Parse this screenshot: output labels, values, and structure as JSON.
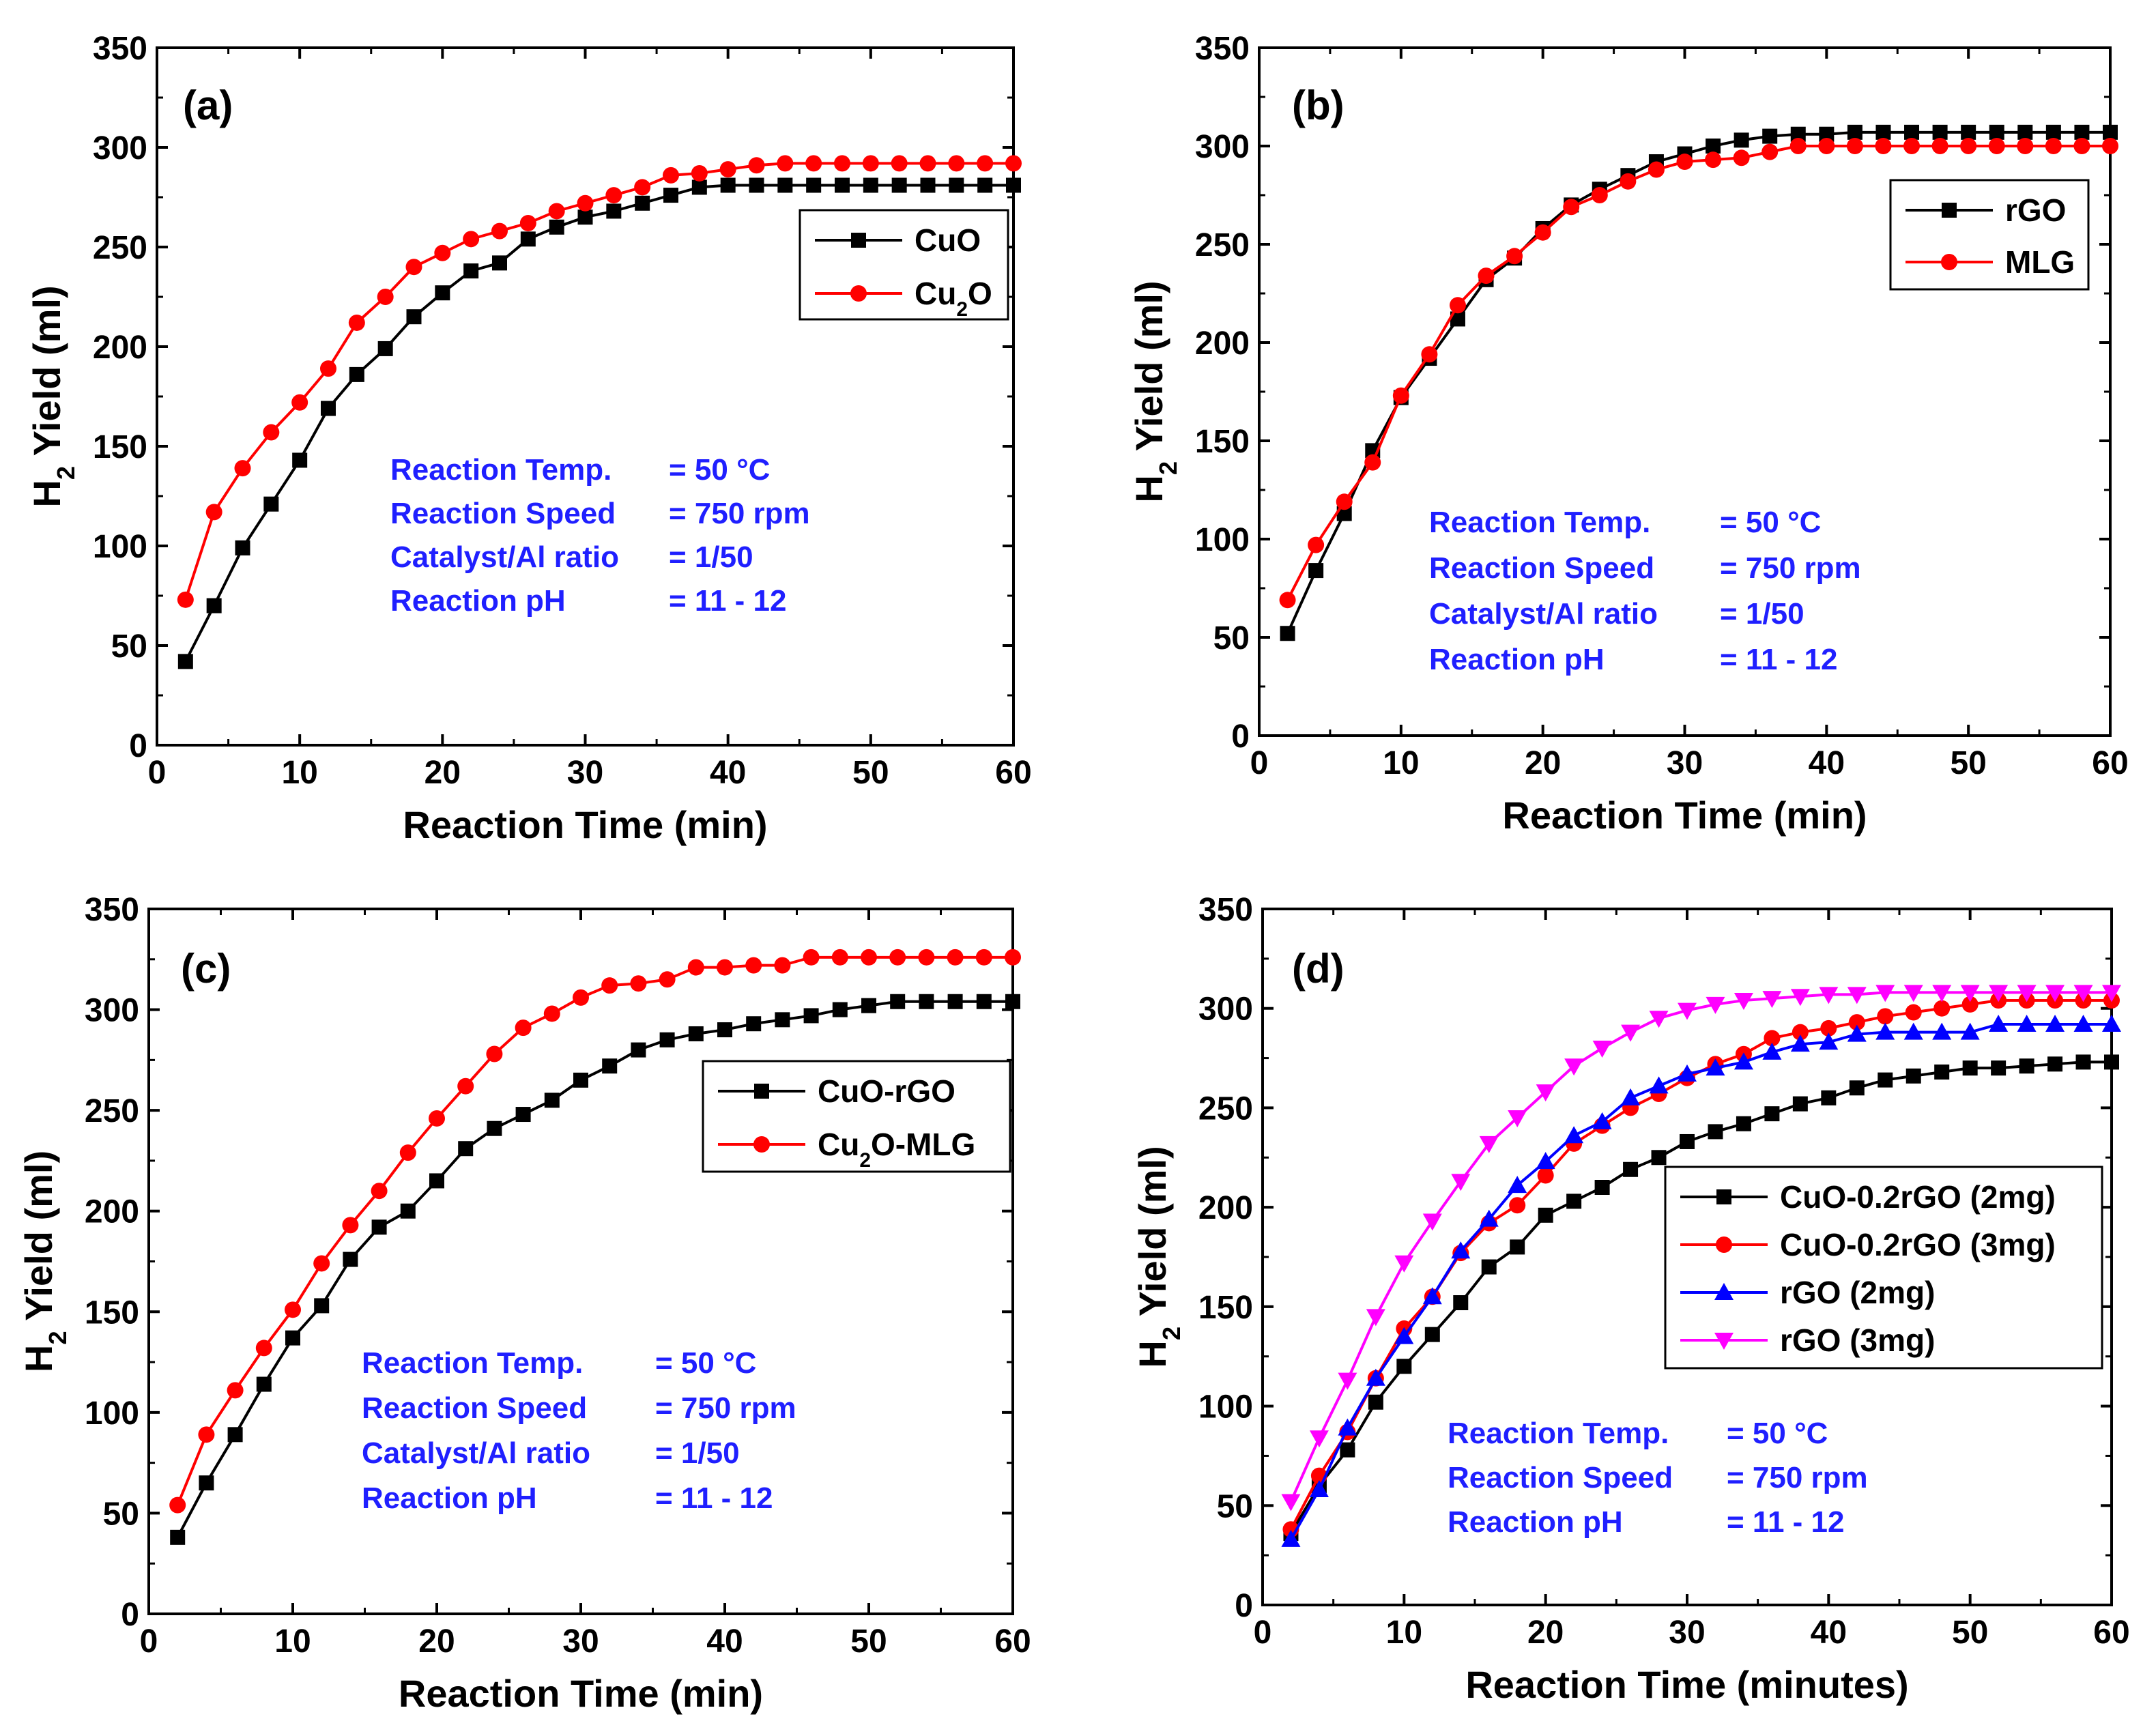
{
  "chart_data": [
    {
      "type": "line",
      "panel_label": "(a)",
      "xlabel": "Reaction Time (min)",
      "ylabel_main": "H",
      "ylabel_sub": "2",
      "ylabel_rest": " Yield (ml)",
      "xlim": [
        0,
        60
      ],
      "ylim": [
        0,
        350
      ],
      "xticks": [
        0,
        10,
        20,
        30,
        40,
        50,
        60
      ],
      "yticks": [
        0,
        50,
        100,
        150,
        200,
        250,
        300,
        350
      ],
      "legend_position": "upper-right",
      "annotation_color": "#1f1fff",
      "annotations": [
        {
          "label": "Reaction Temp.",
          "value": "= 50 °C"
        },
        {
          "label": "Reaction Speed",
          "value": "= 750 rpm"
        },
        {
          "label": "Catalyst/Al ratio",
          "value": "= 1/50"
        },
        {
          "label": "Reaction pH",
          "value": "= 11 - 12"
        }
      ],
      "x": [
        2,
        4,
        6,
        8,
        10,
        12,
        14,
        16,
        18,
        20,
        22,
        24,
        26,
        28,
        30,
        32,
        34,
        36,
        38,
        40,
        42,
        44,
        46,
        48,
        50,
        52,
        54,
        56,
        58,
        60
      ],
      "series": [
        {
          "name": "CuO",
          "name_main": "CuO",
          "name_sub": "",
          "name_rest": "",
          "color": "#000000",
          "marker": "square",
          "values": [
            42,
            70,
            99,
            121,
            143,
            169,
            186,
            199,
            215,
            227,
            238,
            242,
            254,
            260,
            265,
            268,
            272,
            276,
            280,
            281,
            281,
            281,
            281,
            281,
            281,
            281,
            281,
            281,
            281,
            281
          ]
        },
        {
          "name": "Cu2O",
          "name_main": "Cu",
          "name_sub": "2",
          "name_rest": "O",
          "color": "#ff0000",
          "marker": "circle",
          "values": [
            73,
            117,
            139,
            157,
            172,
            189,
            212,
            225,
            240,
            247,
            254,
            258,
            262,
            268,
            272,
            276,
            280,
            286,
            287,
            289,
            291,
            292,
            292,
            292,
            292,
            292,
            292,
            292,
            292,
            292
          ]
        }
      ]
    },
    {
      "type": "line",
      "panel_label": "(b)",
      "xlabel": "Reaction Time (min)",
      "ylabel_main": "H",
      "ylabel_sub": "2",
      "ylabel_rest": " Yield (ml)",
      "xlim": [
        0,
        60
      ],
      "ylim": [
        0,
        350
      ],
      "xticks": [
        0,
        10,
        20,
        30,
        40,
        50,
        60
      ],
      "yticks": [
        0,
        50,
        100,
        150,
        200,
        250,
        300,
        350
      ],
      "legend_position": "upper-right",
      "annotation_color": "#1f1fff",
      "annotations": [
        {
          "label": "Reaction Temp.",
          "value": "= 50 °C"
        },
        {
          "label": "Reaction Speed",
          "value": "= 750 rpm"
        },
        {
          "label": "Catalyst/Al ratio",
          "value": "= 1/50"
        },
        {
          "label": "Reaction pH",
          "value": "= 11 - 12"
        }
      ],
      "x": [
        2,
        4,
        6,
        8,
        10,
        12,
        14,
        16,
        18,
        20,
        22,
        24,
        26,
        28,
        30,
        32,
        34,
        36,
        38,
        40,
        42,
        44,
        46,
        48,
        50,
        52,
        54,
        56,
        58,
        60
      ],
      "series": [
        {
          "name": "rGO",
          "name_main": "rGO",
          "name_sub": "",
          "name_rest": "",
          "color": "#000000",
          "marker": "square",
          "values": [
            52,
            84,
            113,
            145,
            172,
            192,
            212,
            232,
            243,
            258,
            270,
            278,
            285,
            292,
            296,
            300,
            303,
            305,
            306,
            306,
            307,
            307,
            307,
            307,
            307,
            307,
            307,
            307,
            307,
            307
          ]
        },
        {
          "name": "MLG",
          "name_main": "MLG",
          "name_sub": "",
          "name_rest": "",
          "color": "#ff0000",
          "marker": "circle",
          "values": [
            69,
            97,
            119,
            139,
            173,
            194,
            219,
            234,
            244,
            256,
            269,
            275,
            282,
            288,
            292,
            293,
            294,
            297,
            300,
            300,
            300,
            300,
            300,
            300,
            300,
            300,
            300,
            300,
            300,
            300
          ]
        }
      ]
    },
    {
      "type": "line",
      "panel_label": "(c)",
      "xlabel": "Reaction Time (min)",
      "ylabel_main": "H",
      "ylabel_sub": "2",
      "ylabel_rest": " Yield (ml)",
      "xlim": [
        0,
        60
      ],
      "ylim": [
        0,
        350
      ],
      "xticks": [
        0,
        10,
        20,
        30,
        40,
        50,
        60
      ],
      "yticks": [
        0,
        50,
        100,
        150,
        200,
        250,
        300,
        350
      ],
      "legend_position": "right",
      "annotation_color": "#1f1fff",
      "annotations": [
        {
          "label": "Reaction Temp.",
          "value": "= 50 °C"
        },
        {
          "label": "Reaction Speed",
          "value": "= 750 rpm"
        },
        {
          "label": "Catalyst/Al ratio",
          "value": "= 1/50"
        },
        {
          "label": "Reaction pH",
          "value": "= 11 - 12"
        }
      ],
      "x": [
        2,
        4,
        6,
        8,
        10,
        12,
        14,
        16,
        18,
        20,
        22,
        24,
        26,
        28,
        30,
        32,
        34,
        36,
        38,
        40,
        42,
        44,
        46,
        48,
        50,
        52,
        54,
        56,
        58,
        60
      ],
      "series": [
        {
          "name": "CuO-rGO",
          "name_main": "CuO-rGO",
          "name_sub": "",
          "name_rest": "",
          "color": "#000000",
          "marker": "square",
          "values": [
            38,
            65,
            89,
            114,
            137,
            153,
            176,
            192,
            200,
            215,
            231,
            241,
            248,
            255,
            265,
            272,
            280,
            285,
            288,
            290,
            293,
            295,
            297,
            300,
            302,
            304,
            304,
            304,
            304,
            304
          ]
        },
        {
          "name": "Cu2O-MLG",
          "name_main": "Cu",
          "name_sub": "2",
          "name_rest": "O-MLG",
          "color": "#ff0000",
          "marker": "circle",
          "values": [
            54,
            89,
            111,
            132,
            151,
            174,
            193,
            210,
            229,
            246,
            262,
            278,
            291,
            298,
            306,
            312,
            313,
            315,
            321,
            321,
            322,
            322,
            326,
            326,
            326,
            326,
            326,
            326,
            326,
            326
          ]
        }
      ]
    },
    {
      "type": "line",
      "panel_label": "(d)",
      "xlabel": "Reaction Time (minutes)",
      "ylabel_main": "H",
      "ylabel_sub": "2",
      "ylabel_rest": " Yield (ml)",
      "xlim": [
        0,
        60
      ],
      "ylim": [
        0,
        350
      ],
      "xticks": [
        0,
        10,
        20,
        30,
        40,
        50,
        60
      ],
      "yticks": [
        0,
        50,
        100,
        150,
        200,
        250,
        300,
        350
      ],
      "legend_position": "right",
      "annotation_color": "#1f1fff",
      "annotations": [
        {
          "label": "Reaction Temp.",
          "value": "= 50 °C"
        },
        {
          "label": "Reaction Speed",
          "value": "= 750 rpm"
        },
        {
          "label": "Reaction pH",
          "value": "= 11 - 12"
        }
      ],
      "x": [
        2,
        4,
        6,
        8,
        10,
        12,
        14,
        16,
        18,
        20,
        22,
        24,
        26,
        28,
        30,
        32,
        34,
        36,
        38,
        40,
        42,
        44,
        46,
        48,
        50,
        52,
        54,
        56,
        58,
        60
      ],
      "series": [
        {
          "name": "CuO-0.2rGO (2mg)",
          "name_main": "CuO-0.2rGO (2mg)",
          "name_sub": "",
          "name_rest": "",
          "color": "#000000",
          "marker": "square",
          "values": [
            36,
            60,
            78,
            102,
            120,
            136,
            152,
            170,
            180,
            196,
            203,
            210,
            219,
            225,
            233,
            238,
            242,
            247,
            252,
            255,
            260,
            264,
            266,
            268,
            270,
            270,
            271,
            272,
            273,
            273
          ]
        },
        {
          "name": "CuO-0.2rGO (3mg)",
          "name_main": "CuO-0.2rGO (3mg)",
          "name_sub": "",
          "name_rest": "",
          "color": "#ff0000",
          "marker": "circle",
          "values": [
            38,
            65,
            87,
            114,
            139,
            155,
            177,
            192,
            201,
            216,
            232,
            241,
            250,
            257,
            265,
            272,
            277,
            285,
            288,
            290,
            293,
            296,
            298,
            300,
            302,
            304,
            304,
            304,
            304,
            304
          ]
        },
        {
          "name": "rGO (2mg)",
          "name_main": "rGO (2mg)",
          "name_sub": "",
          "name_rest": "",
          "color": "#0000ff",
          "marker": "triangle-up",
          "values": [
            33,
            58,
            89,
            114,
            135,
            155,
            178,
            194,
            211,
            223,
            236,
            243,
            255,
            261,
            267,
            270,
            273,
            278,
            282,
            283,
            287,
            288,
            288,
            288,
            288,
            292,
            292,
            292,
            292,
            292
          ]
        },
        {
          "name": "rGO (3mg)",
          "name_main": "rGO (3mg)",
          "name_sub": "",
          "name_rest": "",
          "color": "#ff00ff",
          "marker": "triangle-down",
          "values": [
            52,
            84,
            113,
            145,
            172,
            193,
            213,
            232,
            245,
            258,
            271,
            280,
            288,
            295,
            299,
            302,
            304,
            305,
            306,
            307,
            307,
            308,
            308,
            308,
            308,
            308,
            308,
            308,
            308,
            308
          ]
        }
      ]
    }
  ]
}
